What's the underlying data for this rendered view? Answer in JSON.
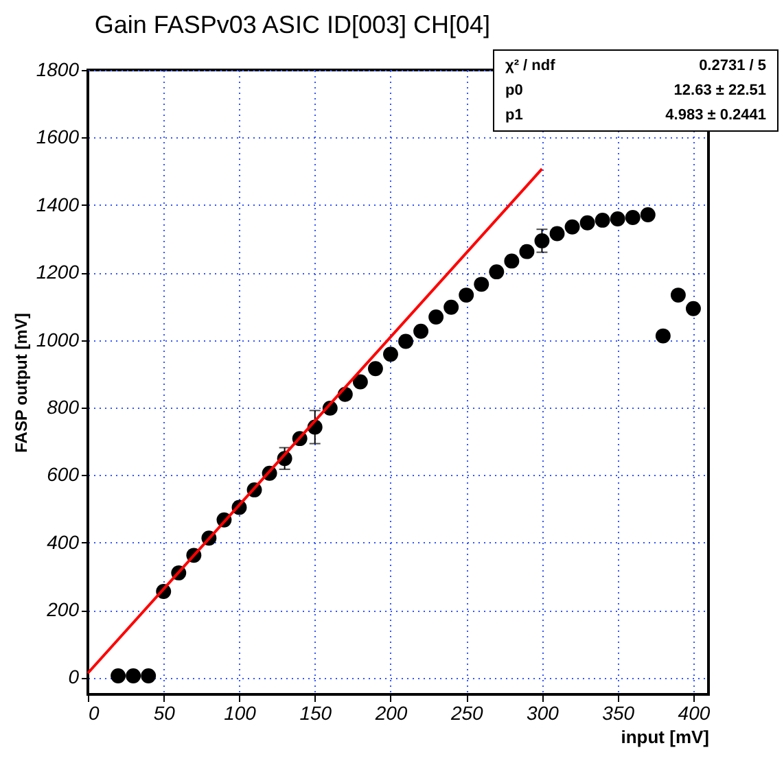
{
  "chart_data": {
    "type": "scatter",
    "title": "Gain FASPv03 ASIC ID[003] CH[04]",
    "xlabel": "input [mV]",
    "ylabel": "FASP output [mV]",
    "xlim": [
      0,
      410
    ],
    "xticks": [
      0,
      50,
      100,
      150,
      200,
      250,
      300,
      350,
      400
    ],
    "ylim": [
      -50,
      1800
    ],
    "yticks": [
      0,
      200,
      400,
      600,
      800,
      1000,
      1200,
      1400,
      1600,
      1800
    ],
    "grid": true,
    "annotations": [
      "χ² / ndf",
      "0.2731 / 5",
      "p0",
      "12.63 ± 22.51",
      "p1",
      "4.983 ± 0.2441"
    ],
    "series": [
      {
        "marker": "circle",
        "color": "#000000",
        "x": [
          20,
          30,
          40,
          50,
          60,
          70,
          80,
          90,
          100,
          110,
          120,
          130,
          140,
          150,
          160,
          170,
          180,
          190,
          200,
          210,
          220,
          230,
          240,
          250,
          260,
          270,
          280,
          290,
          300,
          310,
          320,
          330,
          340,
          350,
          360,
          370,
          380,
          390,
          400
        ],
        "values": [
          5,
          5,
          5,
          255,
          310,
          362,
          413,
          467,
          504,
          556,
          605,
          649,
          708,
          742,
          798,
          839,
          876,
          915,
          958,
          996,
          1026,
          1068,
          1097,
          1133,
          1165,
          1202,
          1234,
          1262,
          1294,
          1315,
          1335,
          1347,
          1355,
          1359,
          1363,
          1371,
          1012,
          1133,
          1093
        ],
        "errors": [
          null,
          null,
          null,
          null,
          null,
          null,
          null,
          null,
          null,
          null,
          null,
          32,
          null,
          49,
          null,
          null,
          null,
          null,
          null,
          null,
          null,
          null,
          null,
          null,
          null,
          null,
          null,
          null,
          34,
          null,
          null,
          null,
          null,
          null,
          null,
          null,
          null,
          null,
          null
        ]
      },
      {
        "type": "line",
        "marker": "none",
        "color": "#ff0000",
        "x": [
          0,
          300
        ],
        "values": [
          13,
          1507
        ]
      }
    ]
  }
}
